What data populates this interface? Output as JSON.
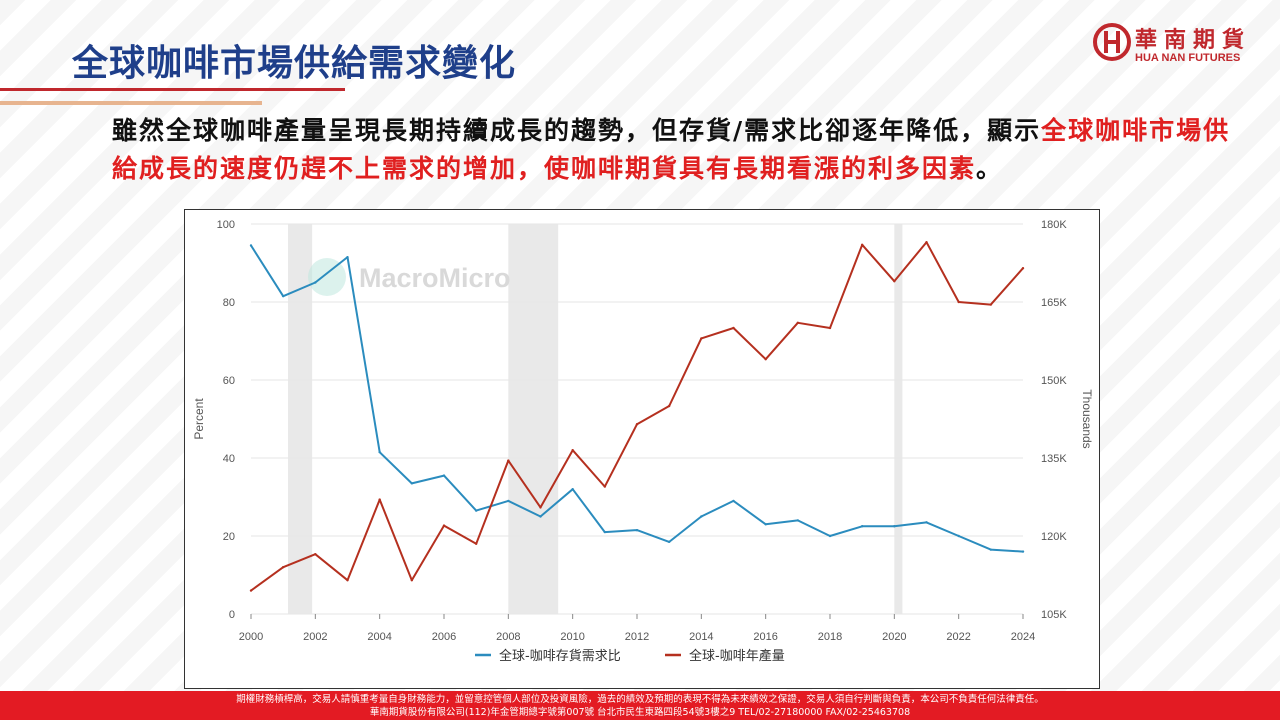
{
  "slide": {
    "title": "全球咖啡市場供給需求變化",
    "intro_black": "雖然全球咖啡產量呈現長期持續成長的趨勢，但存貨/需求比卻逐年降低，顯示",
    "intro_red": "全球咖啡市場供給成長的速度仍趕不上需求的增加，使咖啡期貨具有長期看漲的利多因素",
    "intro_end": "。"
  },
  "logo": {
    "name_cn": "華南期貨",
    "name_en": "HUA NAN FUTURES"
  },
  "footer": {
    "line1": "期權財務槓桿高，交易人請慎重考量自身財務能力，並留意控管個人部位及投資風險，過去的績效及預期的表現不得為未來績效之保證，交易人須自行判斷與負責，本公司不負責任何法律責任。",
    "line2": "華南期貨股份有限公司(112)年金管期總字號第007號 台北市民生東路四段54號3樓之9 TEL/02-27180000 FAX/02-25463708"
  },
  "colors": {
    "ratio": "#2b8cbe",
    "production": "#b5301f",
    "title": "#1f3f8a",
    "accent": "#c0282d"
  },
  "chart_data": {
    "type": "line",
    "watermark": "MacroMicro",
    "x": [
      2000,
      2001,
      2002,
      2003,
      2004,
      2005,
      2006,
      2007,
      2008,
      2009,
      2010,
      2011,
      2012,
      2013,
      2014,
      2015,
      2016,
      2017,
      2018,
      2019,
      2020,
      2021,
      2022,
      2023,
      2024
    ],
    "xlim": [
      2000,
      2024
    ],
    "xticks": [
      "2000",
      "2002",
      "2004",
      "2006",
      "2008",
      "2010",
      "2012",
      "2014",
      "2016",
      "2018",
      "2020",
      "2022",
      "2024"
    ],
    "y_left": {
      "label": "Percent",
      "lim": [
        0,
        100
      ],
      "ticks": [
        "0",
        "20",
        "40",
        "60",
        "80",
        "100"
      ]
    },
    "y_right": {
      "label": "Thousands",
      "lim": [
        105000,
        180000
      ],
      "ticks": [
        "105K",
        "120K",
        "135K",
        "150K",
        "165K",
        "180K"
      ]
    },
    "shaded_periods": [
      [
        2001.15,
        2001.9
      ],
      [
        2008.0,
        2009.55
      ],
      [
        2020.0,
        2020.25
      ]
    ],
    "series": [
      {
        "name": "全球-咖啡存貨需求比",
        "axis": "left",
        "values": [
          94.5,
          81.5,
          85,
          91.5,
          41.5,
          33.5,
          35.5,
          26.5,
          29,
          25,
          32,
          21,
          21.5,
          18.5,
          25,
          29,
          23,
          24,
          20,
          22.5,
          22.5,
          23.5,
          20,
          16.5,
          16
        ]
      },
      {
        "name": "全球-咖啡年產量",
        "axis": "right",
        "values": [
          109500,
          114000,
          116500,
          111500,
          127000,
          111500,
          122000,
          118500,
          134500,
          125500,
          136500,
          129500,
          141500,
          145000,
          158000,
          160000,
          154000,
          161000,
          160000,
          176000,
          169000,
          176500,
          165000,
          164500,
          171500
        ]
      }
    ],
    "grid": true,
    "legend": "bottom"
  }
}
